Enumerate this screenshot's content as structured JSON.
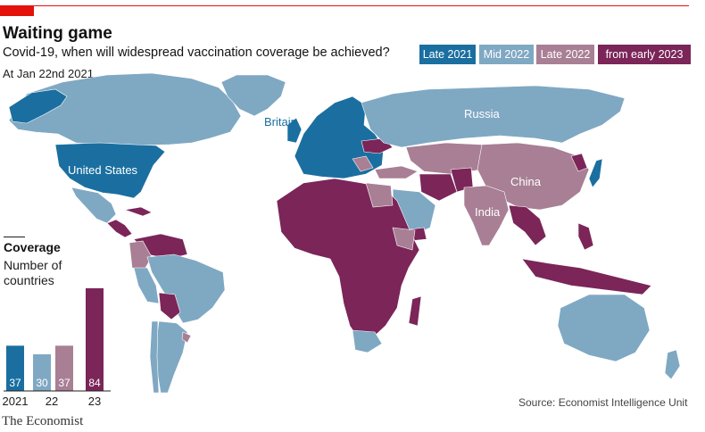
{
  "header": {
    "title": "Waiting game",
    "subtitle": "Covid-19, when will widespread vaccination coverage be achieved?",
    "date": "At Jan 22nd 2021"
  },
  "legend": [
    {
      "label": "Late 2021",
      "color": "#1a6fa0"
    },
    {
      "label": "Mid 2022",
      "color": "#7fa8c3"
    },
    {
      "label": "Late 2022",
      "color": "#a87f94"
    },
    {
      "label": "from early 2023",
      "color": "#7b2559"
    }
  ],
  "map_labels": {
    "britain": "Britain",
    "russia": "Russia",
    "united_states": "United States",
    "china": "China",
    "india": "India"
  },
  "coverage": {
    "title": "Coverage",
    "subtitle": "Number of countries",
    "bar_labels": [
      "2021",
      "22",
      "23"
    ]
  },
  "chart_data": {
    "type": "bar",
    "title": "Coverage",
    "ylabel": "Number of countries",
    "categories": [
      "2021",
      "22",
      "23"
    ],
    "series": [
      {
        "name": "Late 2021",
        "values": [
          37,
          null,
          null
        ]
      },
      {
        "name": "Mid 2022",
        "values": [
          null,
          30,
          null
        ]
      },
      {
        "name": "Late 2022",
        "values": [
          null,
          37,
          null
        ]
      },
      {
        "name": "from early 2023",
        "values": [
          null,
          null,
          84
        ]
      }
    ]
  },
  "footer": {
    "source": "Source: Economist Intelligence Unit",
    "logo": "The Economist"
  }
}
